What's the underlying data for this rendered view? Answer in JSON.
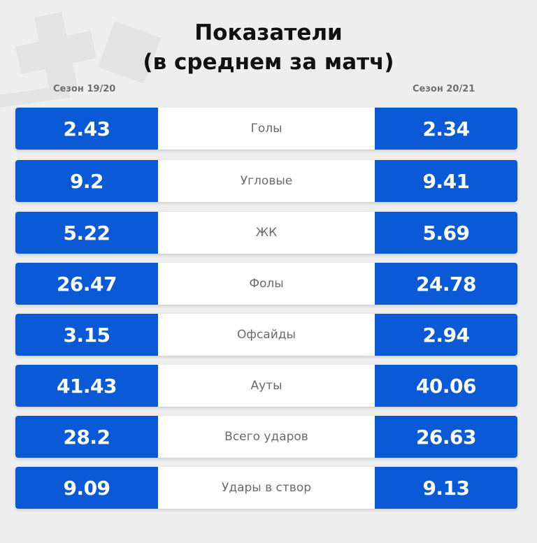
{
  "title": {
    "line1": "Показатели",
    "line2": "(в среднем за матч)"
  },
  "seasons": {
    "left": "Сезон 19/20",
    "right": "Сезон 20/21"
  },
  "colors": {
    "accent": "#0a5ad8",
    "background": "#eeeeee",
    "label_bg": "#ffffff"
  },
  "rows": [
    {
      "label": "Голы",
      "left": "2.43",
      "right": "2.34"
    },
    {
      "label": "Угловые",
      "left": "9.2",
      "right": "9.41"
    },
    {
      "label": "ЖК",
      "left": "5.22",
      "right": "5.69"
    },
    {
      "label": "Фолы",
      "left": "26.47",
      "right": "24.78"
    },
    {
      "label": "Офсайды",
      "left": "3.15",
      "right": "2.94"
    },
    {
      "label": "Ауты",
      "left": "41.43",
      "right": "40.06"
    },
    {
      "label": "Всего ударов",
      "left": "28.2",
      "right": "26.63"
    },
    {
      "label": "Удары в створ",
      "left": "9.09",
      "right": "9.13"
    }
  ]
}
